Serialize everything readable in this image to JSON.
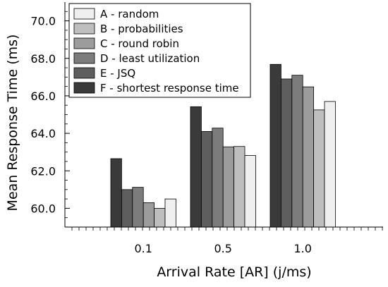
{
  "chart_data": {
    "type": "bar",
    "categories": [
      "0.1",
      "0.5",
      "1.0"
    ],
    "series": [
      {
        "name": "F - shortest response time",
        "color": "#3a3a3a",
        "values": [
          62.65,
          65.42,
          67.68
        ]
      },
      {
        "name": "E - JSQ",
        "color": "#5e5e5e",
        "values": [
          61.0,
          64.1,
          66.9
        ]
      },
      {
        "name": "D - least utilization",
        "color": "#7c7c7c",
        "values": [
          61.12,
          64.28,
          67.1
        ]
      },
      {
        "name": "C - round robin",
        "color": "#9c9c9c",
        "values": [
          60.3,
          63.28,
          66.48
        ]
      },
      {
        "name": "B - probabilities",
        "color": "#bebebe",
        "values": [
          60.0,
          63.3,
          65.25
        ]
      },
      {
        "name": "A - random",
        "color": "#efefef",
        "values": [
          60.5,
          62.82,
          65.7
        ]
      }
    ],
    "legend_entries": [
      {
        "label": "A - random",
        "color": "#efefef"
      },
      {
        "label": "B - probabilities",
        "color": "#bebebe"
      },
      {
        "label": "C - round robin",
        "color": "#9c9c9c"
      },
      {
        "label": "D - least utilization",
        "color": "#7c7c7c"
      },
      {
        "label": "E - JSQ",
        "color": "#5e5e5e"
      },
      {
        "label": "F - shortest response time",
        "color": "#3a3a3a"
      }
    ],
    "legend_position": "top-left",
    "xlabel": "Arrival Rate [AR] (j/ms)",
    "ylabel": "Mean Response Time (ms)",
    "ylim": [
      59.0,
      71.0
    ],
    "yticks": [
      "60.0",
      "62.0",
      "64.0",
      "66.0",
      "68.0",
      "70.0"
    ],
    "grid": false
  }
}
